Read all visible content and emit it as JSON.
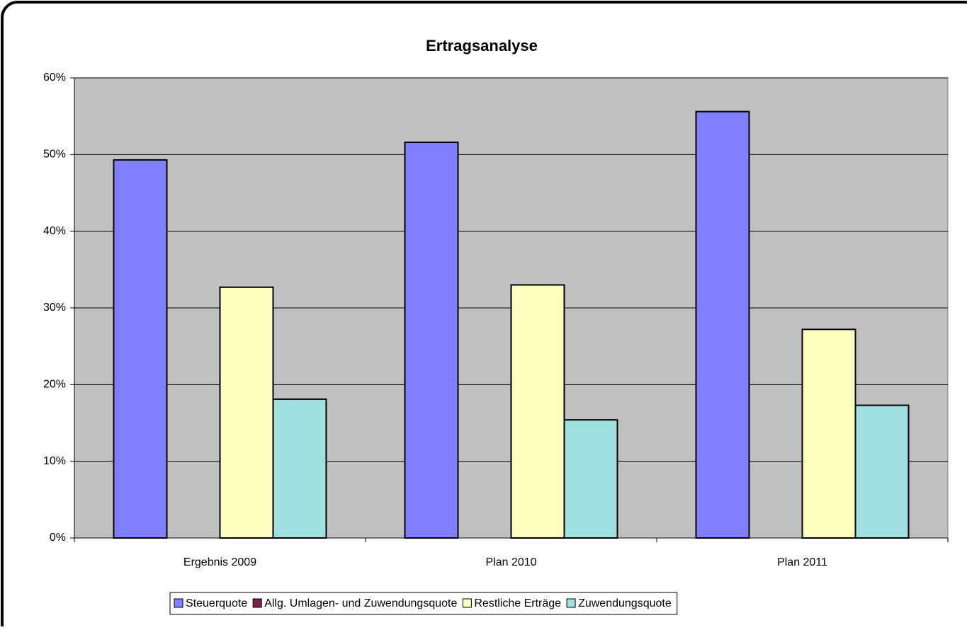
{
  "chart_data": {
    "type": "bar",
    "title": "Ertragsanalyse",
    "categories": [
      "Ergebnis 2009",
      "Plan 2010",
      "Plan 2011"
    ],
    "series": [
      {
        "name": "Steuerquote",
        "color": "#8080ff",
        "values": [
          49.3,
          51.6,
          55.6
        ]
      },
      {
        "name": "Allg. Umlagen- und Zuwendungsquote",
        "color": "#802050",
        "values": [
          0,
          0,
          0
        ]
      },
      {
        "name": "Restliche Erträge",
        "color": "#ffffc0",
        "values": [
          32.7,
          33.0,
          27.2
        ]
      },
      {
        "name": "Zuwendungsquote",
        "color": "#a0e0e0",
        "values": [
          18.1,
          15.4,
          17.3
        ]
      }
    ],
    "ylim": [
      0,
      60
    ],
    "yticks": [
      {
        "value": 0,
        "label": "0%"
      },
      {
        "value": 10,
        "label": "10%"
      },
      {
        "value": 20,
        "label": "20%"
      },
      {
        "value": 30,
        "label": "30%"
      },
      {
        "value": 40,
        "label": "40%"
      },
      {
        "value": 50,
        "label": "50%"
      },
      {
        "value": 60,
        "label": "60%"
      }
    ],
    "grid": true,
    "legend": "bottom"
  }
}
